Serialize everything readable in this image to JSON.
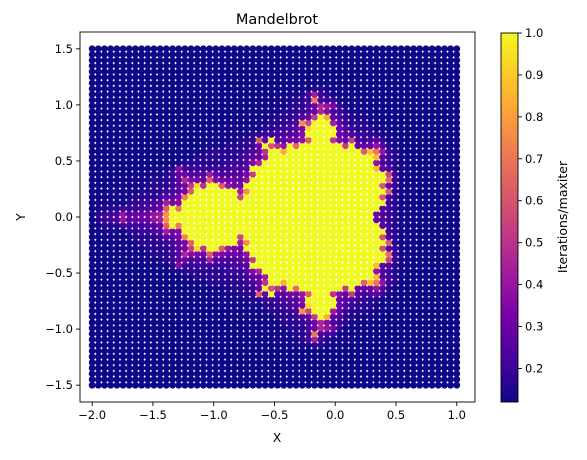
{
  "chart_data": {
    "type": "heatmap",
    "title": "Mandelbrot",
    "xlabel": "X",
    "ylabel": "Y",
    "xlim": [
      -2.1,
      1.15
    ],
    "ylim": [
      -1.65,
      1.65
    ],
    "x_range": [
      -2.0,
      1.0
    ],
    "y_range": [
      -1.5,
      1.5
    ],
    "grid_resolution": 60,
    "max_iter": 30,
    "xticks": [
      -2.0,
      -1.5,
      -1.0,
      -0.5,
      0.0,
      0.5,
      1.0
    ],
    "xtick_labels": [
      "−2.0",
      "−1.5",
      "−1.0",
      "−0.5",
      "0.0",
      "0.5",
      "1.0"
    ],
    "yticks": [
      -1.5,
      -1.0,
      -0.5,
      0.0,
      0.5,
      1.0,
      1.5
    ],
    "ytick_labels": [
      "−1.5",
      "−1.0",
      "−0.5",
      "0.0",
      "0.5",
      "1.0",
      "1.5"
    ],
    "colorbar": {
      "label": "Iterations/maxiter",
      "range": [
        0.12,
        1.0
      ],
      "ticks": [
        0.2,
        0.3,
        0.4,
        0.5,
        0.6,
        0.7,
        0.8,
        0.9,
        1.0
      ],
      "tick_labels": [
        "0.2",
        "0.3",
        "0.4",
        "0.5",
        "0.6",
        "0.7",
        "0.8",
        "0.9",
        "1.0"
      ],
      "colormap": "plasma",
      "colormap_stops": [
        "#0d0887",
        "#46039f",
        "#7201a8",
        "#9c179e",
        "#bd3786",
        "#d8576b",
        "#ed7953",
        "#fb9f3a",
        "#fdca26",
        "#f0f921"
      ]
    },
    "marker": "circle"
  }
}
